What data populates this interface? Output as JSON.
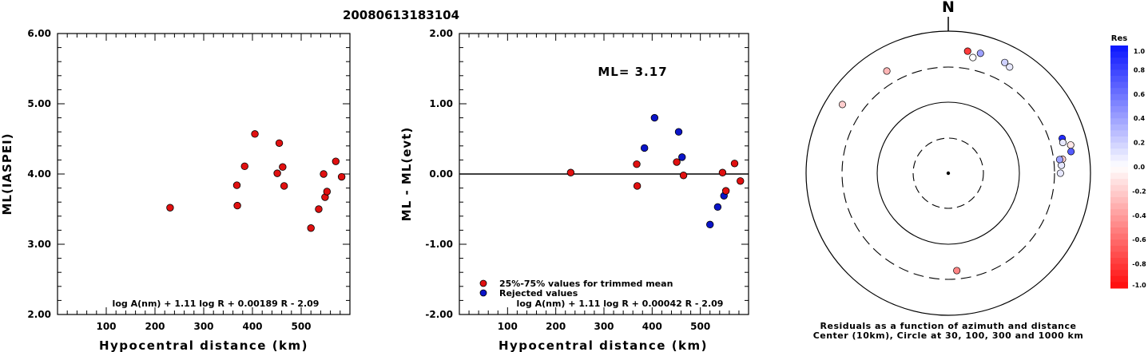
{
  "title": "20080613183104",
  "colors": {
    "kept": "#e01010",
    "rejected": "#0a14c8"
  },
  "chart_data": [
    {
      "type": "scatter",
      "xlabel": "Hypocentral distance (km)",
      "ylabel": "ML(IASPEI)",
      "xlim": [
        0,
        600
      ],
      "ylim": [
        2.0,
        6.0
      ],
      "xticks": [
        "100",
        "200",
        "300",
        "400",
        "500"
      ],
      "xtick_values": [
        100,
        200,
        300,
        400,
        500
      ],
      "yticks": [
        "2.00",
        "3.00",
        "4.00",
        "5.00",
        "6.00"
      ],
      "ytick_values": [
        2,
        3,
        4,
        5,
        6
      ],
      "formula": "log A(nm) + 1.11 log R + 0.00189 R - 2.09",
      "points": [
        {
          "x": 231,
          "y": 3.52
        },
        {
          "x": 368,
          "y": 3.84
        },
        {
          "x": 369,
          "y": 3.55
        },
        {
          "x": 384,
          "y": 4.11
        },
        {
          "x": 405,
          "y": 4.57
        },
        {
          "x": 451,
          "y": 4.01
        },
        {
          "x": 455,
          "y": 4.44
        },
        {
          "x": 462,
          "y": 4.1
        },
        {
          "x": 465,
          "y": 3.83
        },
        {
          "x": 520,
          "y": 3.23
        },
        {
          "x": 536,
          "y": 3.5
        },
        {
          "x": 546,
          "y": 4.0
        },
        {
          "x": 549,
          "y": 3.67
        },
        {
          "x": 553,
          "y": 3.75
        },
        {
          "x": 571,
          "y": 4.18
        },
        {
          "x": 583,
          "y": 3.96
        }
      ]
    },
    {
      "type": "scatter",
      "xlabel": "Hypocentral distance (km)",
      "ylabel": "ML - ML(evt)",
      "xlim": [
        0,
        600
      ],
      "ylim": [
        -2.0,
        2.0
      ],
      "xticks": [
        "100",
        "200",
        "300",
        "400",
        "500"
      ],
      "xtick_values": [
        100,
        200,
        300,
        400,
        500
      ],
      "yticks": [
        "-2.00",
        "-1.00",
        "0.00",
        "1.00",
        "2.00"
      ],
      "ytick_values": [
        -2,
        -1,
        0,
        1,
        2
      ],
      "annotation": "ML= 3.17",
      "formula": "log A(nm) + 1.11 log R + 0.00042 R - 2.09",
      "legend": [
        {
          "label": "25%-75% values for trimmed mean",
          "group": "kept"
        },
        {
          "label": "Rejected values",
          "group": "rejected"
        }
      ],
      "points": [
        {
          "x": 231,
          "y": 0.02,
          "group": "kept"
        },
        {
          "x": 368,
          "y": 0.14,
          "group": "kept"
        },
        {
          "x": 369,
          "y": -0.17,
          "group": "kept"
        },
        {
          "x": 384,
          "y": 0.37,
          "group": "rejected"
        },
        {
          "x": 405,
          "y": 0.8,
          "group": "rejected"
        },
        {
          "x": 451,
          "y": 0.17,
          "group": "kept"
        },
        {
          "x": 455,
          "y": 0.6,
          "group": "rejected"
        },
        {
          "x": 462,
          "y": 0.24,
          "group": "rejected"
        },
        {
          "x": 465,
          "y": -0.02,
          "group": "kept"
        },
        {
          "x": 520,
          "y": -0.72,
          "group": "rejected"
        },
        {
          "x": 536,
          "y": -0.47,
          "group": "rejected"
        },
        {
          "x": 546,
          "y": 0.02,
          "group": "kept"
        },
        {
          "x": 549,
          "y": -0.31,
          "group": "rejected"
        },
        {
          "x": 553,
          "y": -0.24,
          "group": "kept"
        },
        {
          "x": 571,
          "y": 0.15,
          "group": "kept"
        },
        {
          "x": 583,
          "y": -0.1,
          "group": "kept"
        }
      ]
    },
    {
      "type": "scatter",
      "north_label": "N",
      "caption_line1": "Residuals as a function of azimuth and distance",
      "caption_line2": "Center (10km), Circle at 30, 100, 300 and 1000 km",
      "colorbar_title": "Res",
      "colorbar_ticks": [
        "1.0",
        "0.8",
        "0.6",
        "0.4",
        "0.2",
        "0.0",
        "-0.2",
        "-0.4",
        "-0.6",
        "-0.8",
        "-1.0"
      ],
      "colorbar_values": [
        1.0,
        0.8,
        0.6,
        0.4,
        0.2,
        0.0,
        -0.2,
        -0.4,
        -0.6,
        -0.8,
        -1.0
      ],
      "points": [
        {
          "azimuth": 329,
          "distance": 465,
          "residual": -0.3
        },
        {
          "azimuth": 303,
          "distance": 583,
          "residual": -0.2
        },
        {
          "azimuth": 9,
          "distance": 536,
          "residual": -0.8
        },
        {
          "azimuth": 15,
          "distance": 546,
          "residual": 0.4
        },
        {
          "azimuth": 12,
          "distance": 451,
          "residual": 0.0
        },
        {
          "azimuth": 27,
          "distance": 549,
          "residual": 0.2
        },
        {
          "azimuth": 30,
          "distance": 520,
          "residual": 0.1
        },
        {
          "azimuth": 73,
          "distance": 462,
          "residual": 0.9
        },
        {
          "azimuth": 77,
          "distance": 571,
          "residual": -0.1
        },
        {
          "azimuth": 75,
          "distance": 455,
          "residual": 0.1
        },
        {
          "azimuth": 80,
          "distance": 553,
          "residual": 0.7
        },
        {
          "azimuth": 83,
          "distance": 405,
          "residual": -0.2
        },
        {
          "azimuth": 86,
          "distance": 384,
          "residual": 0.1
        },
        {
          "azimuth": 83,
          "distance": 369,
          "residual": 0.4
        },
        {
          "azimuth": 90,
          "distance": 368,
          "residual": 0.1
        },
        {
          "azimuth": 175,
          "distance": 231,
          "residual": -0.5
        }
      ]
    }
  ]
}
